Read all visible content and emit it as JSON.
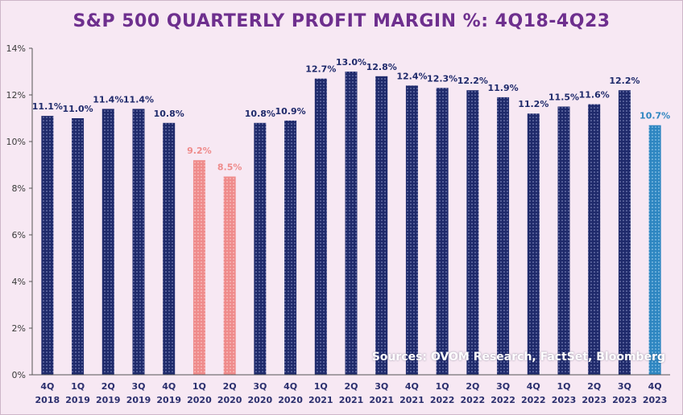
{
  "chart_data": {
    "type": "bar",
    "title": "S&P 500 QUARTERLY PROFIT MARGIN %: 4Q18-4Q23",
    "xlabel": "",
    "ylabel": "",
    "ylim": [
      0,
      14
    ],
    "yticks": [
      0,
      2,
      4,
      6,
      8,
      10,
      12,
      14
    ],
    "ytick_suffix": "%",
    "grid": false,
    "legend": "none",
    "categories": [
      [
        "4Q",
        "2018"
      ],
      [
        "1Q",
        "2019"
      ],
      [
        "2Q",
        "2019"
      ],
      [
        "3Q",
        "2019"
      ],
      [
        "4Q",
        "2019"
      ],
      [
        "1Q",
        "2020"
      ],
      [
        "2Q",
        "2020"
      ],
      [
        "3Q",
        "2020"
      ],
      [
        "4Q",
        "2020"
      ],
      [
        "1Q",
        "2021"
      ],
      [
        "2Q",
        "2021"
      ],
      [
        "3Q",
        "2021"
      ],
      [
        "4Q",
        "2021"
      ],
      [
        "1Q",
        "2022"
      ],
      [
        "2Q",
        "2022"
      ],
      [
        "3Q",
        "2022"
      ],
      [
        "4Q",
        "2022"
      ],
      [
        "1Q",
        "2023"
      ],
      [
        "2Q",
        "2023"
      ],
      [
        "3Q",
        "2023"
      ],
      [
        "4Q",
        "2023"
      ]
    ],
    "values": [
      11.1,
      11.0,
      11.4,
      11.4,
      10.8,
      9.2,
      8.5,
      10.8,
      10.9,
      12.7,
      13.0,
      12.8,
      12.4,
      12.3,
      12.2,
      11.9,
      11.2,
      11.5,
      11.6,
      12.2,
      10.7
    ],
    "data_labels": [
      "11.1%",
      "11.0%",
      "11.4%",
      "11.4%",
      "10.8%",
      "9.2%",
      "8.5%",
      "10.8%",
      "10.9%",
      "12.7%",
      "13.0%",
      "12.8%",
      "12.4%",
      "12.3%",
      "12.2%",
      "11.9%",
      "11.2%",
      "11.5%",
      "11.6%",
      "12.2%",
      "10.7%"
    ],
    "bar_style": [
      "normal",
      "normal",
      "normal",
      "normal",
      "normal",
      "low",
      "low",
      "normal",
      "normal",
      "normal",
      "normal",
      "normal",
      "normal",
      "normal",
      "normal",
      "normal",
      "normal",
      "normal",
      "normal",
      "normal",
      "latest"
    ],
    "source": "Sources: OVOM Research, FactSet, Bloomberg"
  },
  "colors": {
    "normal": "#1f2a6b",
    "low": "#ef8b8b",
    "latest": "#2e86c1",
    "title": "#6e2f8e",
    "axis": "#555555",
    "background": "#f7e8f3"
  }
}
